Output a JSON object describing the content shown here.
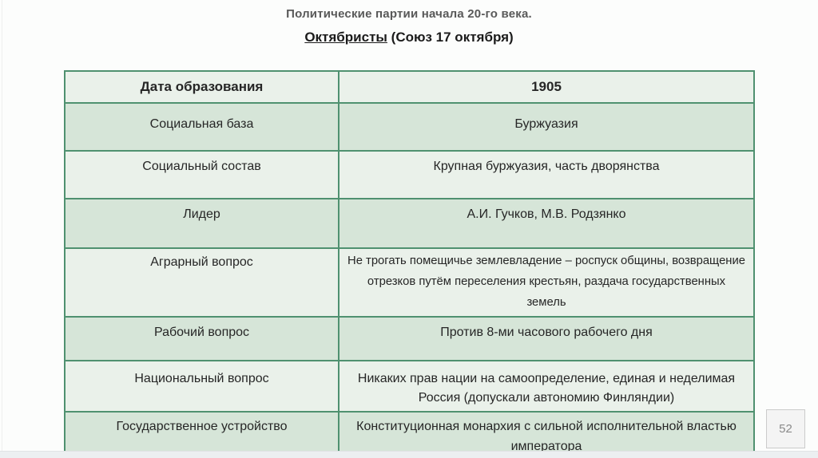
{
  "page": {
    "title": "Политические партии начала 20-го века.",
    "subtitle_party": "Октябристы",
    "subtitle_rest": " (Союз 17 октября)",
    "page_number": "52"
  },
  "table": {
    "rows": [
      {
        "label": "Дата образования",
        "value": "1905",
        "header": true
      },
      {
        "label": "Социальная база",
        "value": "Буржуазия",
        "header": false
      },
      {
        "label": "Социальный состав",
        "value": "Крупная буржуазия, часть дворянства",
        "header": false
      },
      {
        "label": "Лидер",
        "value": "А.И. Гучков, М.В. Родзянко",
        "header": false
      },
      {
        "label": "Аграрный вопрос",
        "value": "Не трогать помещичье землевладение – роспуск общины, возвращение отрезков путём переселения крестьян, раздача государственных земель",
        "header": false
      },
      {
        "label": "Рабочий вопрос",
        "value": "Против 8-ми часового рабочего дня",
        "header": false
      },
      {
        "label": "Национальный вопрос",
        "value": "Никаких прав нации на самоопределение, единая и неделимая Россия (допускали автономию Финляндии)",
        "header": false
      },
      {
        "label": "Государственное устройство",
        "value": "Конституционная монархия с сильной исполнительной властью императора",
        "header": false
      }
    ]
  },
  "colors": {
    "table_outer_border": "#3e7f5e",
    "table_grid_line": "#4f9170",
    "row_light": "#eaf1ea",
    "row_dark": "#d6e5d8",
    "title_gray": "#595959",
    "body_text": "#262626",
    "badge_text": "#8a8a8a",
    "bottom_strip": "#eceff1"
  }
}
